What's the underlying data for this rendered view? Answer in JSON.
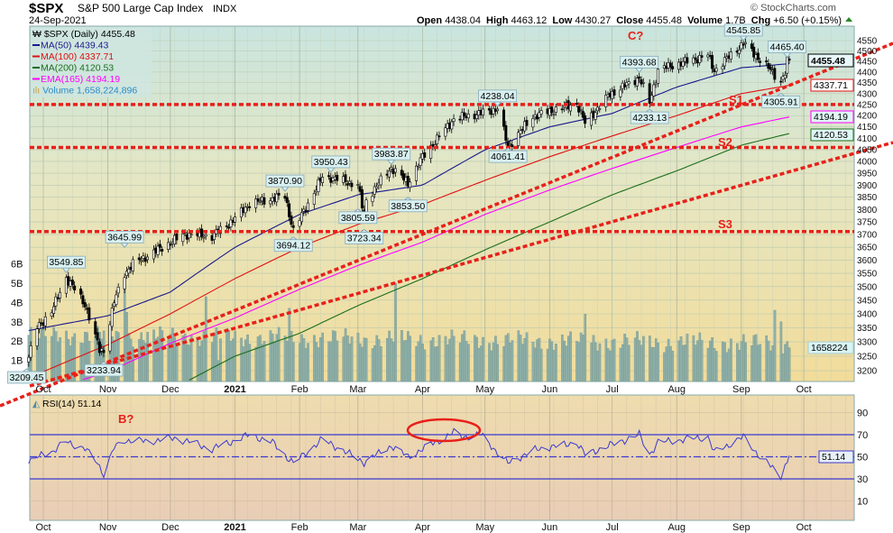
{
  "header": {
    "symbol": "$SPX",
    "name": "S&P 500 Large Cap Index",
    "exchange": "INDX",
    "date": "24-Sep-2021",
    "watermark": "© StockCharts.com",
    "open_label": "Open",
    "open": "4438.04",
    "high_label": "High",
    "high": "4463.12",
    "low_label": "Low",
    "low": "4430.27",
    "close_label": "Close",
    "close": "4455.48",
    "volume_label": "Volume",
    "volume": "1.7B",
    "chg_label": "Chg",
    "chg": "+6.50 (+0.15%)",
    "chg_icon": "up-triangle"
  },
  "legend": {
    "price": "$SPX (Daily) 4455.48",
    "ma50": "MA(50) 4439.43",
    "ma100": "MA(100) 4337.71",
    "ma200": "MA(200) 4120.53",
    "ema165": "EMA(165) 4194.19",
    "volume": "Volume 1,658,224,896",
    "rsi": "RSI(14) 51.14"
  },
  "annotations": {
    "c": "C?",
    "b": "B?",
    "s1": "S1",
    "s2": "S2",
    "s3": "S3"
  },
  "right_boxes": {
    "close": "4455.48",
    "ma100": "4337.71",
    "ema165": "4194.19",
    "ma200": "4120.53",
    "volume": "1658224",
    "rsi": "51.14"
  },
  "volume_axis": [
    "1B",
    "2B",
    "3B",
    "4B",
    "5B",
    "6B"
  ],
  "chart_data": [
    {
      "type": "candlestick",
      "title": "$SPX S&P 500 Large Cap Index INDX",
      "scale": "log",
      "ylim": [
        3165,
        4625
      ],
      "y_ticks": [
        3200,
        3250,
        3300,
        3350,
        3400,
        3450,
        3500,
        3550,
        3600,
        3650,
        3700,
        3750,
        3800,
        3850,
        3900,
        3950,
        4000,
        4050,
        4100,
        4150,
        4200,
        4250,
        4300,
        4350,
        4400,
        4450,
        4500,
        4550
      ],
      "x_ticks": [
        {
          "date": "2020-10-01",
          "label": "Oct"
        },
        {
          "date": "2020-11-01",
          "label": "Nov"
        },
        {
          "date": "2020-12-01",
          "label": "Dec"
        },
        {
          "date": "2021-01-01",
          "label": "2021",
          "bold": true
        },
        {
          "date": "2021-02-01",
          "label": "Feb"
        },
        {
          "date": "2021-03-01",
          "label": "Mar"
        },
        {
          "date": "2021-04-01",
          "label": "Apr"
        },
        {
          "date": "2021-05-01",
          "label": "May"
        },
        {
          "date": "2021-06-01",
          "label": "Jun"
        },
        {
          "date": "2021-07-01",
          "label": "Jul"
        },
        {
          "date": "2021-08-01",
          "label": "Aug"
        },
        {
          "date": "2021-09-01",
          "label": "Sep"
        },
        {
          "date": "2021-10-01",
          "label": "Oct"
        }
      ],
      "grid": true,
      "close_anchors": [
        [
          "2020-09-24",
          3246
        ],
        [
          "2020-09-28",
          3351
        ],
        [
          "2020-10-05",
          3408
        ],
        [
          "2020-10-12",
          3534
        ],
        [
          "2020-10-21",
          3435
        ],
        [
          "2020-10-28",
          3271
        ],
        [
          "2020-10-30",
          3270
        ],
        [
          "2020-11-04",
          3443
        ],
        [
          "2020-11-09",
          3550
        ],
        [
          "2020-11-13",
          3585
        ],
        [
          "2020-11-24",
          3635
        ],
        [
          "2020-12-08",
          3702
        ],
        [
          "2020-12-21",
          3694
        ],
        [
          "2020-12-31",
          3756
        ],
        [
          "2021-01-08",
          3824
        ],
        [
          "2021-01-25",
          3855
        ],
        [
          "2021-01-29",
          3714
        ],
        [
          "2021-02-12",
          3934
        ],
        [
          "2021-02-16",
          3932
        ],
        [
          "2021-03-01",
          3901
        ],
        [
          "2021-03-04",
          3768
        ],
        [
          "2021-03-05",
          3841
        ],
        [
          "2021-03-17",
          3974
        ],
        [
          "2021-03-25",
          3909
        ],
        [
          "2021-04-01",
          4019
        ],
        [
          "2021-04-16",
          4185
        ],
        [
          "2021-04-29",
          4211
        ],
        [
          "2021-05-07",
          4232
        ],
        [
          "2021-05-12",
          4063
        ],
        [
          "2021-05-24",
          4197
        ],
        [
          "2021-06-14",
          4255
        ],
        [
          "2021-06-18",
          4166
        ],
        [
          "2021-06-30",
          4297
        ],
        [
          "2021-07-14",
          4374
        ],
        [
          "2021-07-19",
          4258
        ],
        [
          "2021-07-23",
          4411
        ],
        [
          "2021-08-16",
          4479
        ],
        [
          "2021-08-19",
          4406
        ],
        [
          "2021-09-02",
          4537
        ],
        [
          "2021-09-10",
          4458
        ],
        [
          "2021-09-20",
          4358
        ],
        [
          "2021-09-22",
          4395
        ],
        [
          "2021-09-23",
          4448
        ],
        [
          "2021-09-24",
          4455.48
        ]
      ],
      "callouts": [
        {
          "date": "2020-09-23",
          "value": 3209.45,
          "text": "3209.45",
          "pos": "below"
        },
        {
          "date": "2020-10-12",
          "value": 3549.85,
          "text": "3549.85",
          "pos": "above"
        },
        {
          "date": "2020-10-30",
          "value": 3233.94,
          "text": "3233.94",
          "pos": "below"
        },
        {
          "date": "2020-11-09",
          "value": 3645.99,
          "text": "3645.99",
          "pos": "above"
        },
        {
          "date": "2021-01-25",
          "value": 3870.9,
          "text": "3870.90",
          "pos": "above"
        },
        {
          "date": "2021-01-29",
          "value": 3694.12,
          "text": "3694.12",
          "pos": "below"
        },
        {
          "date": "2021-02-16",
          "value": 3950.43,
          "text": "3950.43",
          "pos": "above"
        },
        {
          "date": "2021-03-01",
          "value": 3805.59,
          "text": "3805.59",
          "pos": "below"
        },
        {
          "date": "2021-03-04",
          "value": 3723.34,
          "text": "3723.34",
          "pos": "below"
        },
        {
          "date": "2021-03-17",
          "value": 3983.87,
          "text": "3983.87",
          "pos": "above"
        },
        {
          "date": "2021-03-25",
          "value": 3853.5,
          "text": "3853.50",
          "pos": "below"
        },
        {
          "date": "2021-05-07",
          "value": 4238.04,
          "text": "4238.04",
          "pos": "above"
        },
        {
          "date": "2021-05-12",
          "value": 4061.41,
          "text": "4061.41",
          "pos": "below"
        },
        {
          "date": "2021-07-14",
          "value": 4393.68,
          "text": "4393.68",
          "pos": "above"
        },
        {
          "date": "2021-07-19",
          "value": 4233.13,
          "text": "4233.13",
          "pos": "below"
        },
        {
          "date": "2021-09-02",
          "value": 4545.85,
          "text": "4545.85",
          "pos": "above"
        },
        {
          "date": "2021-09-20",
          "value": 4305.91,
          "text": "4305.91",
          "pos": "below"
        },
        {
          "date": "2021-09-23",
          "value": 4465.4,
          "text": "4465.40",
          "pos": "above"
        }
      ],
      "series": [
        {
          "name": "MA(50)",
          "color": "#1a1a8c",
          "anchors": [
            [
              "2020-09-24",
              3340
            ],
            [
              "2020-11-01",
              3393
            ],
            [
              "2020-12-01",
              3480
            ],
            [
              "2021-01-01",
              3650
            ],
            [
              "2021-02-01",
              3780
            ],
            [
              "2021-03-01",
              3860
            ],
            [
              "2021-04-01",
              3900
            ],
            [
              "2021-05-01",
              4050
            ],
            [
              "2021-06-01",
              4150
            ],
            [
              "2021-07-01",
              4210
            ],
            [
              "2021-08-01",
              4330
            ],
            [
              "2021-09-01",
              4420
            ],
            [
              "2021-09-24",
              4439.43
            ]
          ]
        },
        {
          "name": "MA(100)",
          "color": "#e01010",
          "anchors": [
            [
              "2020-09-24",
              3176
            ],
            [
              "2020-11-01",
              3290
            ],
            [
              "2020-12-01",
              3400
            ],
            [
              "2021-01-01",
              3530
            ],
            [
              "2021-02-01",
              3650
            ],
            [
              "2021-03-01",
              3740
            ],
            [
              "2021-04-01",
              3820
            ],
            [
              "2021-05-01",
              3920
            ],
            [
              "2021-06-01",
              4020
            ],
            [
              "2021-07-01",
              4110
            ],
            [
              "2021-08-01",
              4200
            ],
            [
              "2021-09-01",
              4300
            ],
            [
              "2021-09-24",
              4337.71
            ]
          ]
        },
        {
          "name": "EMA(165)",
          "color": "#ff00ff",
          "anchors": [
            [
              "2020-10-20",
              3170
            ],
            [
              "2020-11-01",
              3195
            ],
            [
              "2020-12-01",
              3295
            ],
            [
              "2021-01-01",
              3385
            ],
            [
              "2021-02-01",
              3490
            ],
            [
              "2021-03-01",
              3580
            ],
            [
              "2021-04-01",
              3670
            ],
            [
              "2021-05-01",
              3780
            ],
            [
              "2021-06-01",
              3880
            ],
            [
              "2021-07-01",
              3970
            ],
            [
              "2021-08-01",
              4060
            ],
            [
              "2021-09-01",
              4150
            ],
            [
              "2021-09-24",
              4194.19
            ]
          ]
        },
        {
          "name": "MA(200)",
          "color": "#1a6e1a",
          "anchors": [
            [
              "2020-12-10",
              3168
            ],
            [
              "2021-01-01",
              3250
            ],
            [
              "2021-02-01",
              3330
            ],
            [
              "2021-03-01",
              3430
            ],
            [
              "2021-04-01",
              3530
            ],
            [
              "2021-05-01",
              3640
            ],
            [
              "2021-06-01",
              3750
            ],
            [
              "2021-07-01",
              3860
            ],
            [
              "2021-08-01",
              3960
            ],
            [
              "2021-09-01",
              4070
            ],
            [
              "2021-09-24",
              4120.53
            ]
          ]
        }
      ],
      "support_levels": [
        {
          "label": "S1",
          "value": 4250
        },
        {
          "label": "S2",
          "value": 4060
        },
        {
          "label": "S3",
          "value": 3712
        }
      ],
      "volume": {
        "unit": "B",
        "base_B": 2.3,
        "spikes": [
          [
            "2020-11-09",
            5.2
          ],
          [
            "2020-11-10",
            3.5
          ],
          [
            "2020-12-18",
            4.3
          ],
          [
            "2020-12-24",
            1.0
          ],
          [
            "2021-01-27",
            3.7
          ],
          [
            "2021-03-19",
            5.0
          ],
          [
            "2021-06-18",
            3.4
          ],
          [
            "2021-09-17",
            3.6
          ],
          [
            "2021-09-20",
            3.0
          ]
        ],
        "last": 1658224896
      }
    },
    {
      "type": "line",
      "title": "RSI(14) 51.14",
      "ylim": [
        0,
        100
      ],
      "y_ticks": [
        10,
        30,
        50,
        70,
        90
      ],
      "reference_lines": [
        30,
        50,
        70
      ],
      "color": "#3a3ad0",
      "anchors": [
        [
          "2020-09-24",
          44
        ],
        [
          "2020-10-01",
          53
        ],
        [
          "2020-10-06",
          55
        ],
        [
          "2020-10-12",
          64
        ],
        [
          "2020-10-21",
          57
        ],
        [
          "2020-10-27",
          45
        ],
        [
          "2020-10-30",
          34
        ],
        [
          "2020-11-04",
          58
        ],
        [
          "2020-11-09",
          65
        ],
        [
          "2020-11-20",
          64
        ],
        [
          "2020-12-04",
          67
        ],
        [
          "2020-12-21",
          57
        ],
        [
          "2021-01-08",
          70
        ],
        [
          "2021-01-19",
          63
        ],
        [
          "2021-01-29",
          44
        ],
        [
          "2021-02-12",
          66
        ],
        [
          "2021-03-04",
          45
        ],
        [
          "2021-03-17",
          60
        ],
        [
          "2021-03-25",
          50
        ],
        [
          "2021-04-16",
          72
        ],
        [
          "2021-04-20",
          68
        ],
        [
          "2021-04-29",
          70
        ],
        [
          "2021-05-12",
          44
        ],
        [
          "2021-05-24",
          56
        ],
        [
          "2021-06-14",
          63
        ],
        [
          "2021-06-18",
          52
        ],
        [
          "2021-07-14",
          70
        ],
        [
          "2021-07-19",
          52
        ],
        [
          "2021-07-23",
          63
        ],
        [
          "2021-08-16",
          68
        ],
        [
          "2021-08-19",
          54
        ],
        [
          "2021-09-02",
          68
        ],
        [
          "2021-09-10",
          50
        ],
        [
          "2021-09-20",
          33
        ],
        [
          "2021-09-24",
          51.14
        ]
      ],
      "highlight": {
        "label": "circled RSI peak",
        "from": "2021-04-05",
        "to": "2021-04-30"
      }
    }
  ]
}
